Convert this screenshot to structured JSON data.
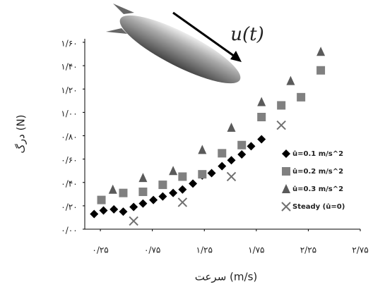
{
  "chart_data": {
    "type": "scatter",
    "xlabel": "سرعت (m/s)",
    "ylabel": "درگ (N)",
    "annotation": "u(t)",
    "xlim": [
      0.1,
      2.75
    ],
    "ylim": [
      0,
      1.6
    ],
    "xticks": [
      {
        "value": 0.25,
        "label": "۰/۲۵"
      },
      {
        "value": 0.75,
        "label": "۰/۷۵"
      },
      {
        "value": 1.25,
        "label": "۱/۲۵"
      },
      {
        "value": 1.75,
        "label": "۱/۷۵"
      },
      {
        "value": 2.25,
        "label": "۲/۲۵"
      },
      {
        "value": 2.75,
        "label": "۲/۷۵"
      }
    ],
    "yticks": [
      {
        "value": 0,
        "label": "۰/۰۰"
      },
      {
        "value": 0.2,
        "label": "۰/۲۰"
      },
      {
        "value": 0.4,
        "label": "۰/۴۰"
      },
      {
        "value": 0.6,
        "label": "۰/۶۰"
      },
      {
        "value": 0.8,
        "label": "۰/۸۰"
      },
      {
        "value": 1,
        "label": "۱/۰۰"
      },
      {
        "value": 1.2,
        "label": "۱/۲۰"
      },
      {
        "value": 1.4,
        "label": "۱/۴۰"
      },
      {
        "value": 1.6,
        "label": "۱/۶۰"
      }
    ],
    "series": [
      {
        "name": "u̇=0.1 m/s^2",
        "color": "#000000",
        "marker": "diamond",
        "x": [
          0.19,
          0.28,
          0.38,
          0.47,
          0.57,
          0.66,
          0.76,
          0.85,
          0.95,
          1.04,
          1.14,
          1.23,
          1.32,
          1.42,
          1.51,
          1.61,
          1.7,
          1.8
        ],
        "values": [
          0.13,
          0.16,
          0.17,
          0.15,
          0.19,
          0.22,
          0.25,
          0.28,
          0.31,
          0.34,
          0.39,
          0.46,
          0.48,
          0.54,
          0.59,
          0.64,
          0.71,
          0.77
        ]
      },
      {
        "name": "u̇=0.2 m/s^2",
        "color": "#808080",
        "marker": "square",
        "x": [
          0.26,
          0.47,
          0.66,
          0.85,
          1.04,
          1.23,
          1.42,
          1.61,
          1.8,
          1.99,
          2.18,
          2.37
        ],
        "values": [
          0.25,
          0.31,
          0.32,
          0.38,
          0.45,
          0.47,
          0.65,
          0.72,
          0.96,
          1.06,
          1.13,
          1.36
        ]
      },
      {
        "name": "u̇=0.3 m/s^2",
        "color": "#5a5a5a",
        "marker": "triangle",
        "x": [
          0.37,
          0.66,
          0.95,
          1.23,
          1.51,
          1.8,
          2.08,
          2.37
        ],
        "values": [
          0.34,
          0.44,
          0.5,
          0.68,
          0.87,
          1.09,
          1.27,
          1.52
        ]
      },
      {
        "name": "Steady (u̇=0)",
        "color": "#707070",
        "marker": "x",
        "x": [
          0.57,
          1.04,
          1.51,
          1.99
        ],
        "values": [
          0.07,
          0.23,
          0.45,
          0.89
        ]
      }
    ]
  }
}
